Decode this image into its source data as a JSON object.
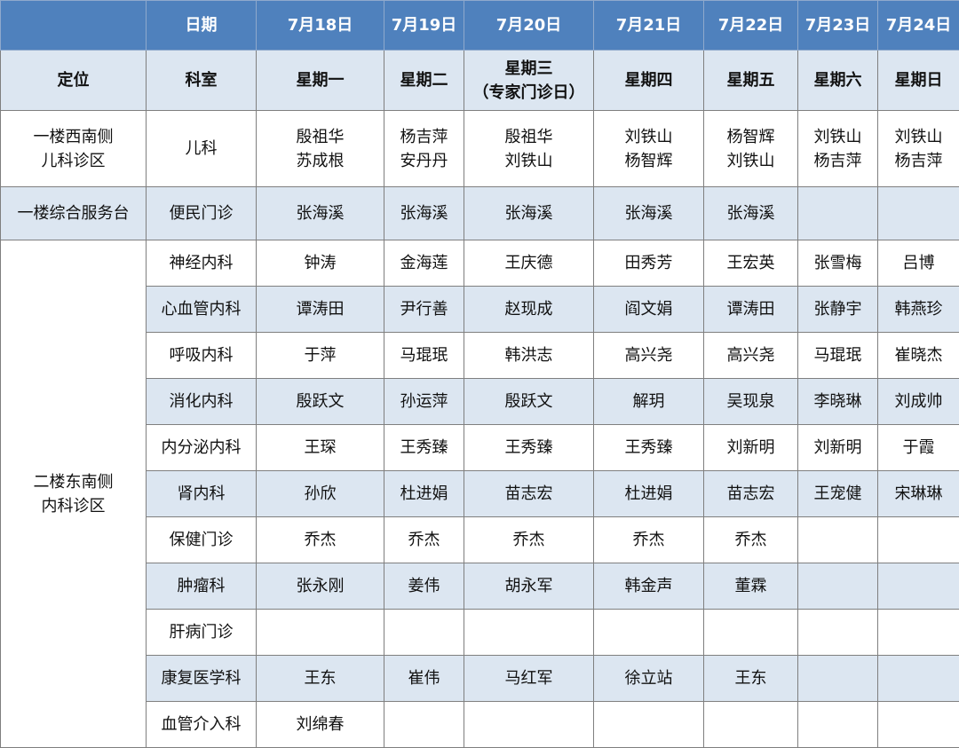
{
  "header": {
    "corner": "",
    "date_label": "日期",
    "dates": [
      "7月18日",
      "7月19日",
      "7月20日",
      "7月21日",
      "7月22日",
      "7月23日",
      "7月24日"
    ]
  },
  "subheader": {
    "location_label": "定位",
    "department_label": "科室",
    "weekdays": [
      [
        "星期一"
      ],
      [
        "星期二"
      ],
      [
        "星期三",
        "（专家门诊日）"
      ],
      [
        "星期四"
      ],
      [
        "星期五"
      ],
      [
        "星期六"
      ],
      [
        "星期日"
      ]
    ]
  },
  "rows": [
    {
      "location": [
        "一楼西南侧",
        "儿科诊区"
      ],
      "department": "儿科",
      "doctors": [
        [
          "殷祖华",
          "苏成根"
        ],
        [
          "杨吉萍",
          "安丹丹"
        ],
        [
          "殷祖华",
          "刘铁山"
        ],
        [
          "刘铁山",
          "杨智辉"
        ],
        [
          "杨智辉",
          "刘铁山"
        ],
        [
          "刘铁山",
          "杨吉萍"
        ],
        [
          "刘铁山",
          "杨吉萍"
        ]
      ]
    },
    {
      "location": [
        "一楼综合服务台"
      ],
      "department": "便民门诊",
      "doctors": [
        [
          "张海溪"
        ],
        [
          "张海溪"
        ],
        [
          "张海溪"
        ],
        [
          "张海溪"
        ],
        [
          "张海溪"
        ],
        [],
        []
      ]
    }
  ],
  "internal": {
    "location": [
      "二楼东南侧",
      "内科诊区"
    ],
    "rows": [
      {
        "department": "神经内科",
        "doctors": [
          "钟涛",
          "金海莲",
          "王庆德",
          "田秀芳",
          "王宏英",
          "张雪梅",
          "吕博"
        ]
      },
      {
        "department": "心血管内科",
        "doctors": [
          "谭涛田",
          "尹行善",
          "赵现成",
          "阎文娟",
          "谭涛田",
          "张静宇",
          "韩燕珍"
        ]
      },
      {
        "department": "呼吸内科",
        "doctors": [
          "于萍",
          "马琨珉",
          "韩洪志",
          "高兴尧",
          "高兴尧",
          "马琨珉",
          "崔晓杰"
        ]
      },
      {
        "department": "消化内科",
        "doctors": [
          "殷跃文",
          "孙运萍",
          "殷跃文",
          "解玥",
          "吴现泉",
          "李晓琳",
          "刘成帅"
        ]
      },
      {
        "department": "内分泌内科",
        "doctors": [
          "王琛",
          "王秀臻",
          "王秀臻",
          "王秀臻",
          "刘新明",
          "刘新明",
          "于霞"
        ]
      },
      {
        "department": "肾内科",
        "doctors": [
          "孙欣",
          "杜进娟",
          "苗志宏",
          "杜进娟",
          "苗志宏",
          "王宠健",
          "宋琳琳"
        ]
      },
      {
        "department": "保健门诊",
        "doctors": [
          "乔杰",
          "乔杰",
          "乔杰",
          "乔杰",
          "乔杰",
          "",
          ""
        ]
      },
      {
        "department": "肿瘤科",
        "doctors": [
          "张永刚",
          "姜伟",
          "胡永军",
          "韩金声",
          "董霖",
          "",
          ""
        ]
      },
      {
        "department": "肝病门诊",
        "doctors": [
          "",
          "",
          "",
          "",
          "",
          "",
          ""
        ]
      },
      {
        "department": "康复医学科",
        "doctors": [
          "王东",
          "崔伟",
          "马红军",
          "徐立站",
          "王东",
          "",
          ""
        ]
      },
      {
        "department": "血管介入科",
        "doctors": [
          "刘绵春",
          "",
          "",
          "",
          "",
          "",
          ""
        ]
      }
    ]
  },
  "colors": {
    "header_bg": "#4f81bd",
    "stripe_bg": "#dce6f1",
    "border": "#7f7f7f"
  }
}
